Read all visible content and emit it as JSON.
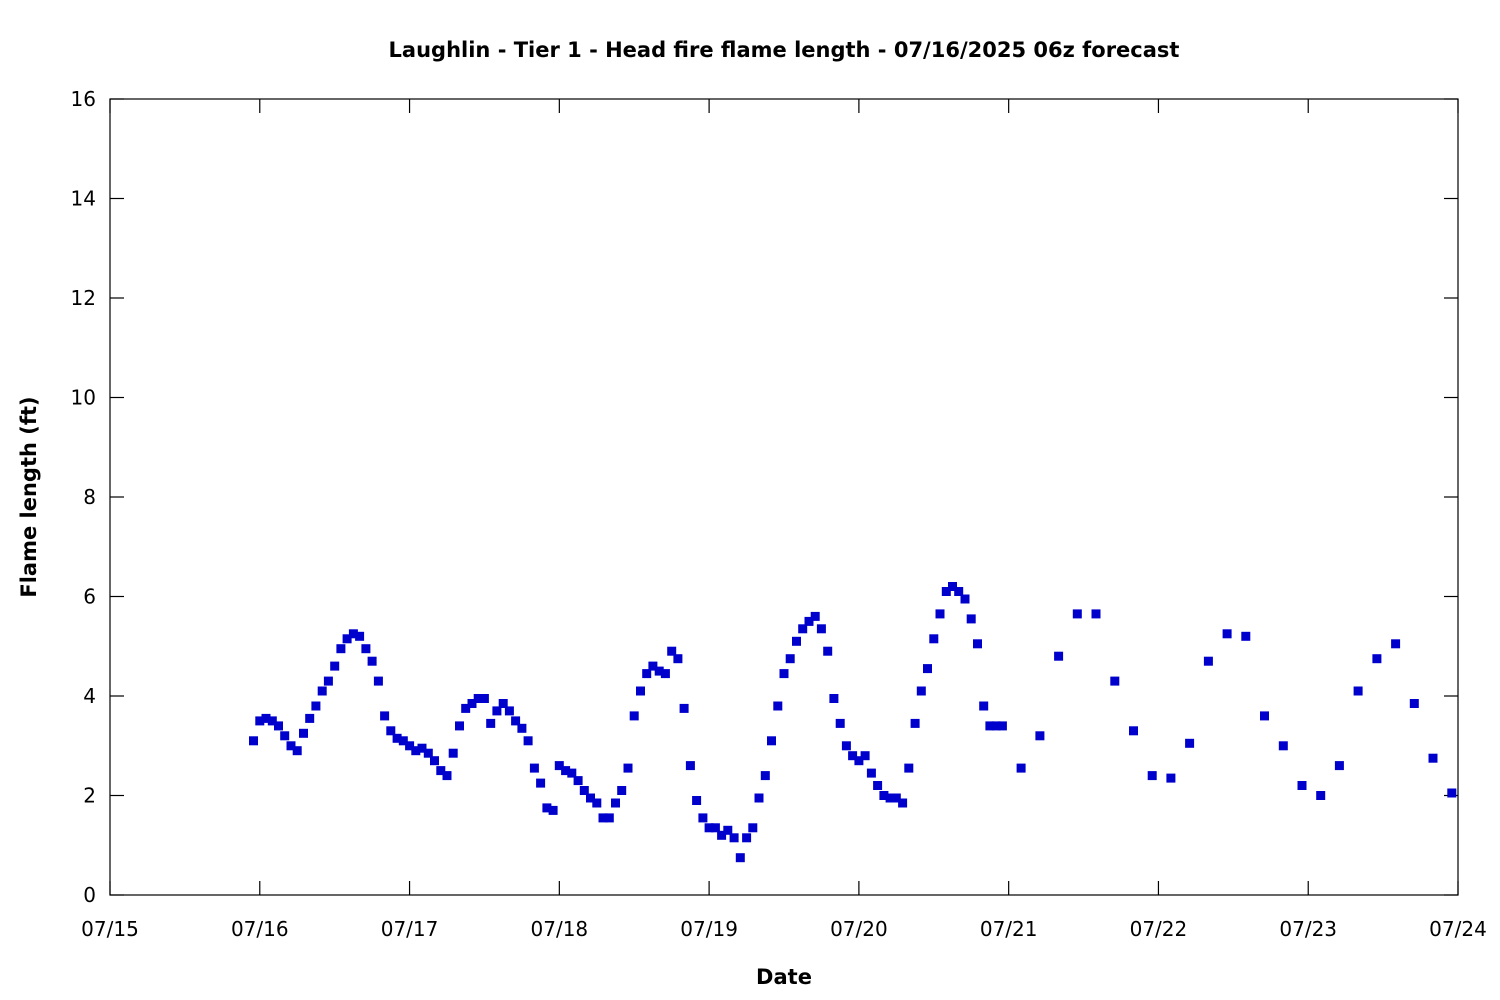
{
  "chart_data": {
    "type": "scatter",
    "title": "Laughlin - Tier 1 - Head fire flame length - 07/16/2025 06z forecast",
    "xlabel": "Date",
    "ylabel": "Flame length (ft)",
    "x_axis": {
      "ticks": [
        "07/15",
        "07/16",
        "07/17",
        "07/18",
        "07/19",
        "07/20",
        "07/21",
        "07/22",
        "07/23",
        "07/24"
      ]
    },
    "y_axis": {
      "range": [
        0,
        16
      ],
      "ticks": [
        "0",
        "2",
        "4",
        "6",
        "8",
        "10",
        "12",
        "14",
        "16"
      ]
    },
    "grid": false,
    "marker_color": "#0000cc",
    "series": [
      {
        "points": [
          [
            "07/15 23:00",
            3.1
          ],
          [
            "07/16 00:00",
            3.5
          ],
          [
            "07/16 01:00",
            3.55
          ],
          [
            "07/16 02:00",
            3.5
          ],
          [
            "07/16 03:00",
            3.4
          ],
          [
            "07/16 04:00",
            3.2
          ],
          [
            "07/16 05:00",
            3.0
          ],
          [
            "07/16 06:00",
            2.9
          ],
          [
            "07/16 07:00",
            3.25
          ],
          [
            "07/16 08:00",
            3.55
          ],
          [
            "07/16 09:00",
            3.8
          ],
          [
            "07/16 10:00",
            4.1
          ],
          [
            "07/16 11:00",
            4.3
          ],
          [
            "07/16 12:00",
            4.6
          ],
          [
            "07/16 13:00",
            4.95
          ],
          [
            "07/16 14:00",
            5.15
          ],
          [
            "07/16 15:00",
            5.25
          ],
          [
            "07/16 16:00",
            5.2
          ],
          [
            "07/16 17:00",
            4.95
          ],
          [
            "07/16 18:00",
            4.7
          ],
          [
            "07/16 19:00",
            4.3
          ],
          [
            "07/16 20:00",
            3.6
          ],
          [
            "07/16 21:00",
            3.3
          ],
          [
            "07/16 22:00",
            3.15
          ],
          [
            "07/16 23:00",
            3.1
          ],
          [
            "07/17 00:00",
            3.0
          ],
          [
            "07/17 01:00",
            2.9
          ],
          [
            "07/17 02:00",
            2.95
          ],
          [
            "07/17 03:00",
            2.85
          ],
          [
            "07/17 04:00",
            2.7
          ],
          [
            "07/17 05:00",
            2.5
          ],
          [
            "07/17 06:00",
            2.4
          ],
          [
            "07/17 07:00",
            2.85
          ],
          [
            "07/17 08:00",
            3.4
          ],
          [
            "07/17 09:00",
            3.75
          ],
          [
            "07/17 10:00",
            3.85
          ],
          [
            "07/17 11:00",
            3.95
          ],
          [
            "07/17 12:00",
            3.95
          ],
          [
            "07/17 13:00",
            3.45
          ],
          [
            "07/17 14:00",
            3.7
          ],
          [
            "07/17 15:00",
            3.85
          ],
          [
            "07/17 16:00",
            3.7
          ],
          [
            "07/17 17:00",
            3.5
          ],
          [
            "07/17 18:00",
            3.35
          ],
          [
            "07/17 19:00",
            3.1
          ],
          [
            "07/17 20:00",
            2.55
          ],
          [
            "07/17 21:00",
            2.25
          ],
          [
            "07/17 22:00",
            1.75
          ],
          [
            "07/17 23:00",
            1.7
          ],
          [
            "07/18 00:00",
            2.6
          ],
          [
            "07/18 01:00",
            2.5
          ],
          [
            "07/18 02:00",
            2.45
          ],
          [
            "07/18 03:00",
            2.3
          ],
          [
            "07/18 04:00",
            2.1
          ],
          [
            "07/18 05:00",
            1.95
          ],
          [
            "07/18 06:00",
            1.85
          ],
          [
            "07/18 07:00",
            1.55
          ],
          [
            "07/18 08:00",
            1.55
          ],
          [
            "07/18 09:00",
            1.85
          ],
          [
            "07/18 10:00",
            2.1
          ],
          [
            "07/18 11:00",
            2.55
          ],
          [
            "07/18 12:00",
            3.6
          ],
          [
            "07/18 13:00",
            4.1
          ],
          [
            "07/18 14:00",
            4.45
          ],
          [
            "07/18 15:00",
            4.6
          ],
          [
            "07/18 16:00",
            4.5
          ],
          [
            "07/18 17:00",
            4.45
          ],
          [
            "07/18 18:00",
            4.9
          ],
          [
            "07/18 19:00",
            4.75
          ],
          [
            "07/18 20:00",
            3.75
          ],
          [
            "07/18 21:00",
            2.6
          ],
          [
            "07/18 22:00",
            1.9
          ],
          [
            "07/18 23:00",
            1.55
          ],
          [
            "07/19 00:00",
            1.35
          ],
          [
            "07/19 01:00",
            1.35
          ],
          [
            "07/19 02:00",
            1.2
          ],
          [
            "07/19 03:00",
            1.3
          ],
          [
            "07/19 04:00",
            1.15
          ],
          [
            "07/19 05:00",
            0.75
          ],
          [
            "07/19 06:00",
            1.15
          ],
          [
            "07/19 07:00",
            1.35
          ],
          [
            "07/19 08:00",
            1.95
          ],
          [
            "07/19 09:00",
            2.4
          ],
          [
            "07/19 10:00",
            3.1
          ],
          [
            "07/19 11:00",
            3.8
          ],
          [
            "07/19 12:00",
            4.45
          ],
          [
            "07/19 13:00",
            4.75
          ],
          [
            "07/19 14:00",
            5.1
          ],
          [
            "07/19 15:00",
            5.35
          ],
          [
            "07/19 16:00",
            5.5
          ],
          [
            "07/19 17:00",
            5.6
          ],
          [
            "07/19 18:00",
            5.35
          ],
          [
            "07/19 19:00",
            4.9
          ],
          [
            "07/19 20:00",
            3.95
          ],
          [
            "07/19 21:00",
            3.45
          ],
          [
            "07/19 22:00",
            3.0
          ],
          [
            "07/19 23:00",
            2.8
          ],
          [
            "07/20 00:00",
            2.7
          ],
          [
            "07/20 01:00",
            2.8
          ],
          [
            "07/20 02:00",
            2.45
          ],
          [
            "07/20 03:00",
            2.2
          ],
          [
            "07/20 04:00",
            2.0
          ],
          [
            "07/20 05:00",
            1.95
          ],
          [
            "07/20 06:00",
            1.95
          ],
          [
            "07/20 07:00",
            1.85
          ],
          [
            "07/20 08:00",
            2.55
          ],
          [
            "07/20 09:00",
            3.45
          ],
          [
            "07/20 10:00",
            4.1
          ],
          [
            "07/20 11:00",
            4.55
          ],
          [
            "07/20 12:00",
            5.15
          ],
          [
            "07/20 13:00",
            5.65
          ],
          [
            "07/20 14:00",
            6.1
          ],
          [
            "07/20 15:00",
            6.2
          ],
          [
            "07/20 16:00",
            6.1
          ],
          [
            "07/20 17:00",
            5.95
          ],
          [
            "07/20 18:00",
            5.55
          ],
          [
            "07/20 19:00",
            5.05
          ],
          [
            "07/20 20:00",
            3.8
          ],
          [
            "07/20 21:00",
            3.4
          ],
          [
            "07/20 22:00",
            3.4
          ],
          [
            "07/20 23:00",
            3.4
          ],
          [
            "07/21 02:00",
            2.55
          ],
          [
            "07/21 05:00",
            3.2
          ],
          [
            "07/21 08:00",
            4.8
          ],
          [
            "07/21 11:00",
            5.65
          ],
          [
            "07/21 14:00",
            5.65
          ],
          [
            "07/21 17:00",
            4.3
          ],
          [
            "07/21 20:00",
            3.3
          ],
          [
            "07/21 23:00",
            2.4
          ],
          [
            "07/22 02:00",
            2.35
          ],
          [
            "07/22 05:00",
            3.05
          ],
          [
            "07/22 08:00",
            4.7
          ],
          [
            "07/22 11:00",
            5.25
          ],
          [
            "07/22 14:00",
            5.2
          ],
          [
            "07/22 17:00",
            3.6
          ],
          [
            "07/22 20:00",
            3.0
          ],
          [
            "07/22 23:00",
            2.2
          ],
          [
            "07/23 02:00",
            2.0
          ],
          [
            "07/23 05:00",
            2.6
          ],
          [
            "07/23 08:00",
            4.1
          ],
          [
            "07/23 11:00",
            4.75
          ],
          [
            "07/23 14:00",
            5.05
          ],
          [
            "07/23 17:00",
            3.85
          ],
          [
            "07/23 20:00",
            2.75
          ],
          [
            "07/23 23:00",
            2.05
          ]
        ]
      }
    ]
  }
}
